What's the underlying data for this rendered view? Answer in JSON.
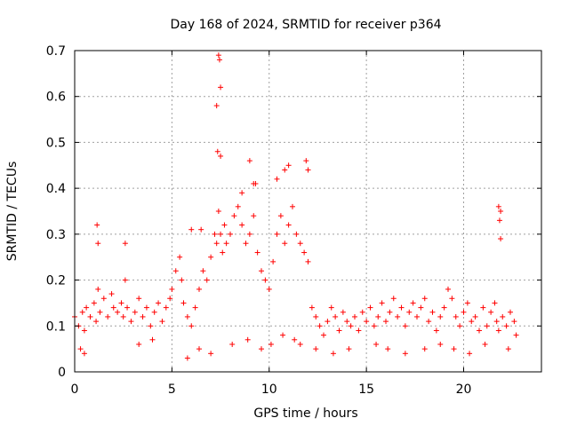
{
  "chart_data": {
    "type": "scatter",
    "title": "Day 168 of 2024, SRMTID for receiver p364",
    "xlabel": "GPS time / hours",
    "ylabel": "SRMTID / TECUs",
    "xlim": [
      0,
      24
    ],
    "ylim": [
      0,
      0.7
    ],
    "grid": true,
    "marker": "+",
    "color": "#ff0000",
    "x_ticks": [
      {
        "value": 0,
        "label": "0"
      },
      {
        "value": 5,
        "label": "5"
      },
      {
        "value": 10,
        "label": "10"
      },
      {
        "value": 15,
        "label": "15"
      },
      {
        "value": 20,
        "label": "20"
      }
    ],
    "y_ticks": [
      {
        "value": 0,
        "label": "0"
      },
      {
        "value": 0.1,
        "label": "0.1"
      },
      {
        "value": 0.2,
        "label": "0.2"
      },
      {
        "value": 0.3,
        "label": "0.3"
      },
      {
        "value": 0.4,
        "label": "0.4"
      },
      {
        "value": 0.5,
        "label": "0.5"
      },
      {
        "value": 0.6,
        "label": "0.6"
      },
      {
        "value": 0.7,
        "label": "0.7"
      }
    ],
    "series": [
      {
        "name": "SRMTID",
        "x": [
          0.0,
          0.2,
          0.4,
          0.5,
          0.6,
          0.8,
          1.0,
          1.1,
          1.2,
          1.3,
          1.5,
          1.7,
          1.9,
          2.0,
          2.2,
          2.4,
          2.5,
          2.6,
          2.7,
          2.9,
          3.1,
          3.3,
          3.5,
          3.7,
          3.9,
          4.1,
          4.3,
          4.5,
          4.7,
          4.9,
          5.0,
          5.2,
          5.4,
          5.5,
          5.6,
          5.8,
          6.0,
          6.2,
          6.4,
          6.6,
          6.8,
          7.0,
          7.2,
          7.3,
          7.4,
          7.5,
          7.6,
          7.7,
          7.8,
          8.0,
          8.2,
          8.4,
          8.6,
          8.8,
          9.0,
          9.2,
          9.4,
          9.6,
          9.8,
          10.0,
          10.2,
          10.4,
          10.6,
          10.8,
          11.0,
          11.2,
          11.4,
          11.6,
          11.8,
          12.0,
          12.2,
          12.4,
          12.6,
          12.8,
          13.0,
          13.2,
          13.4,
          13.6,
          13.8,
          14.0,
          14.2,
          14.4,
          14.6,
          14.8,
          15.0,
          15.2,
          15.4,
          15.6,
          15.8,
          16.0,
          16.2,
          16.4,
          16.6,
          16.8,
          17.0,
          17.2,
          17.4,
          17.6,
          17.8,
          18.0,
          18.2,
          18.4,
          18.6,
          18.8,
          19.0,
          19.2,
          19.4,
          19.6,
          19.8,
          20.0,
          20.2,
          20.4,
          20.6,
          20.8,
          21.0,
          21.2,
          21.4,
          21.6,
          21.7,
          21.8,
          22.0,
          22.2,
          22.4,
          22.6,
          22.7,
          7.4,
          7.45,
          7.5,
          7.3,
          7.35,
          7.5,
          9.0,
          9.2,
          10.8,
          11.0,
          11.9,
          12.0,
          1.15,
          1.2,
          2.6,
          21.8,
          21.9,
          21.85,
          21.9,
          6.0,
          6.5,
          8.6,
          9.3,
          10.4,
          0.3,
          0.5,
          3.3,
          4.0,
          5.8,
          6.4,
          7.0,
          8.1,
          8.9,
          9.6,
          10.1,
          10.7,
          11.3,
          11.6,
          12.4,
          13.3,
          14.1,
          15.5,
          16.1,
          17.0,
          18.0,
          18.8,
          19.5,
          20.3,
          21.1,
          22.3
        ],
        "y": [
          0.12,
          0.1,
          0.13,
          0.09,
          0.14,
          0.12,
          0.15,
          0.11,
          0.18,
          0.13,
          0.16,
          0.12,
          0.17,
          0.14,
          0.13,
          0.15,
          0.12,
          0.2,
          0.14,
          0.11,
          0.13,
          0.16,
          0.12,
          0.14,
          0.1,
          0.13,
          0.15,
          0.11,
          0.14,
          0.16,
          0.18,
          0.22,
          0.25,
          0.2,
          0.15,
          0.12,
          0.1,
          0.14,
          0.18,
          0.22,
          0.2,
          0.25,
          0.3,
          0.28,
          0.35,
          0.3,
          0.26,
          0.32,
          0.28,
          0.3,
          0.34,
          0.36,
          0.32,
          0.28,
          0.3,
          0.34,
          0.26,
          0.22,
          0.2,
          0.18,
          0.24,
          0.3,
          0.34,
          0.28,
          0.32,
          0.36,
          0.3,
          0.28,
          0.26,
          0.24,
          0.14,
          0.12,
          0.1,
          0.08,
          0.11,
          0.14,
          0.12,
          0.09,
          0.13,
          0.11,
          0.1,
          0.12,
          0.09,
          0.13,
          0.11,
          0.14,
          0.1,
          0.12,
          0.15,
          0.11,
          0.13,
          0.16,
          0.12,
          0.14,
          0.1,
          0.13,
          0.15,
          0.12,
          0.14,
          0.16,
          0.11,
          0.13,
          0.09,
          0.12,
          0.14,
          0.18,
          0.16,
          0.12,
          0.1,
          0.13,
          0.15,
          0.11,
          0.12,
          0.09,
          0.14,
          0.1,
          0.13,
          0.15,
          0.11,
          0.09,
          0.12,
          0.1,
          0.13,
          0.11,
          0.08,
          0.69,
          0.68,
          0.62,
          0.58,
          0.48,
          0.47,
          0.46,
          0.41,
          0.44,
          0.45,
          0.46,
          0.44,
          0.32,
          0.28,
          0.28,
          0.36,
          0.35,
          0.33,
          0.29,
          0.31,
          0.31,
          0.39,
          0.41,
          0.42,
          0.05,
          0.04,
          0.06,
          0.07,
          0.03,
          0.05,
          0.04,
          0.06,
          0.07,
          0.05,
          0.06,
          0.08,
          0.07,
          0.06,
          0.05,
          0.04,
          0.05,
          0.06,
          0.05,
          0.04,
          0.05,
          0.06,
          0.05,
          0.04,
          0.06,
          0.05
        ]
      }
    ]
  }
}
